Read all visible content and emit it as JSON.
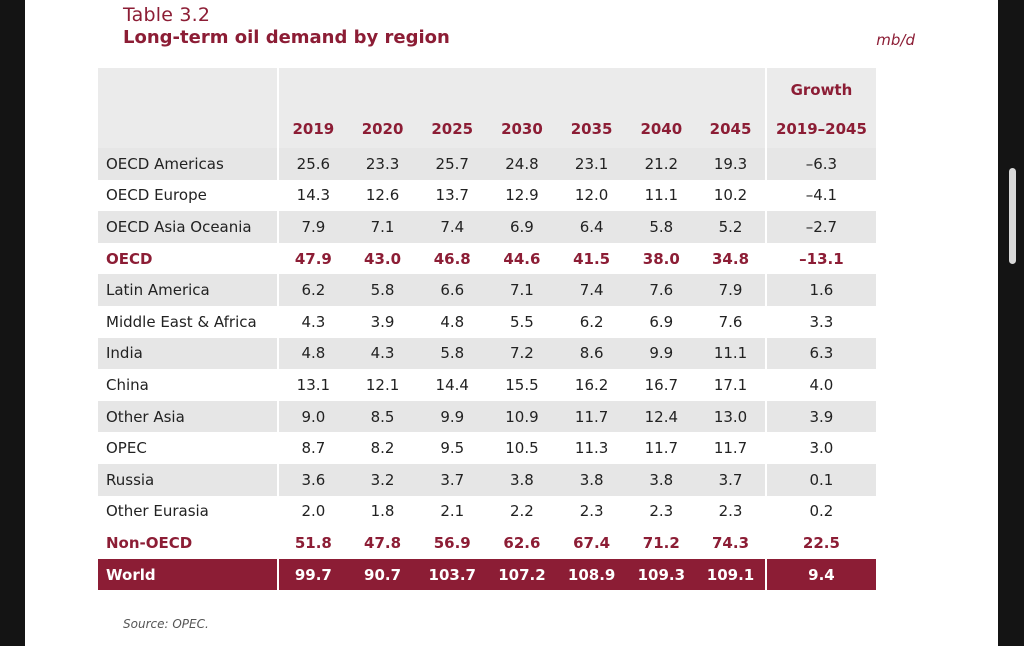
{
  "table": {
    "label": "Table 3.2",
    "title": "Long-term oil demand by region",
    "unit": "mb/d",
    "growth_header": "Growth",
    "years": [
      "2019",
      "2020",
      "2025",
      "2030",
      "2035",
      "2040",
      "2045"
    ],
    "growth_period": "2019–2045",
    "rows": [
      {
        "region": "OECD Americas",
        "values": [
          "25.6",
          "23.3",
          "25.7",
          "24.8",
          "23.1",
          "21.2",
          "19.3"
        ],
        "growth": "–6.3",
        "style": "alt"
      },
      {
        "region": "OECD Europe",
        "values": [
          "14.3",
          "12.6",
          "13.7",
          "12.9",
          "12.0",
          "11.1",
          "10.2"
        ],
        "growth": "–4.1",
        "style": "plain"
      },
      {
        "region": "OECD Asia Oceania",
        "values": [
          "7.9",
          "7.1",
          "7.4",
          "6.9",
          "6.4",
          "5.8",
          "5.2"
        ],
        "growth": "–2.7",
        "style": "alt"
      },
      {
        "region": "OECD",
        "values": [
          "47.9",
          "43.0",
          "46.8",
          "44.6",
          "41.5",
          "38.0",
          "34.8"
        ],
        "growth": "–13.1",
        "style": "sub"
      },
      {
        "region": "Latin America",
        "values": [
          "6.2",
          "5.8",
          "6.6",
          "7.1",
          "7.4",
          "7.6",
          "7.9"
        ],
        "growth": "1.6",
        "style": "alt"
      },
      {
        "region": "Middle East & Africa",
        "values": [
          "4.3",
          "3.9",
          "4.8",
          "5.5",
          "6.2",
          "6.9",
          "7.6"
        ],
        "growth": "3.3",
        "style": "plain"
      },
      {
        "region": "India",
        "values": [
          "4.8",
          "4.3",
          "5.8",
          "7.2",
          "8.6",
          "9.9",
          "11.1"
        ],
        "growth": "6.3",
        "style": "alt"
      },
      {
        "region": "China",
        "values": [
          "13.1",
          "12.1",
          "14.4",
          "15.5",
          "16.2",
          "16.7",
          "17.1"
        ],
        "growth": "4.0",
        "style": "plain"
      },
      {
        "region": "Other Asia",
        "values": [
          "9.0",
          "8.5",
          "9.9",
          "10.9",
          "11.7",
          "12.4",
          "13.0"
        ],
        "growth": "3.9",
        "style": "alt"
      },
      {
        "region": "OPEC",
        "values": [
          "8.7",
          "8.2",
          "9.5",
          "10.5",
          "11.3",
          "11.7",
          "11.7"
        ],
        "growth": "3.0",
        "style": "plain"
      },
      {
        "region": "Russia",
        "values": [
          "3.6",
          "3.2",
          "3.7",
          "3.8",
          "3.8",
          "3.8",
          "3.7"
        ],
        "growth": "0.1",
        "style": "alt"
      },
      {
        "region": "Other Eurasia",
        "values": [
          "2.0",
          "1.8",
          "2.1",
          "2.2",
          "2.3",
          "2.3",
          "2.3"
        ],
        "growth": "0.2",
        "style": "plain"
      },
      {
        "region": "Non-OECD",
        "values": [
          "51.8",
          "47.8",
          "56.9",
          "62.6",
          "67.4",
          "71.2",
          "74.3"
        ],
        "growth": "22.5",
        "style": "sub"
      },
      {
        "region": "World",
        "values": [
          "99.7",
          "90.7",
          "103.7",
          "107.2",
          "108.9",
          "109.3",
          "109.1"
        ],
        "growth": "9.4",
        "style": "world"
      }
    ],
    "source": "Source: OPEC."
  },
  "colors": {
    "accent": "#8c1d35",
    "row_shade": "#e6e6e6",
    "header_shade": "#ebebeb",
    "frame": "#141414"
  }
}
